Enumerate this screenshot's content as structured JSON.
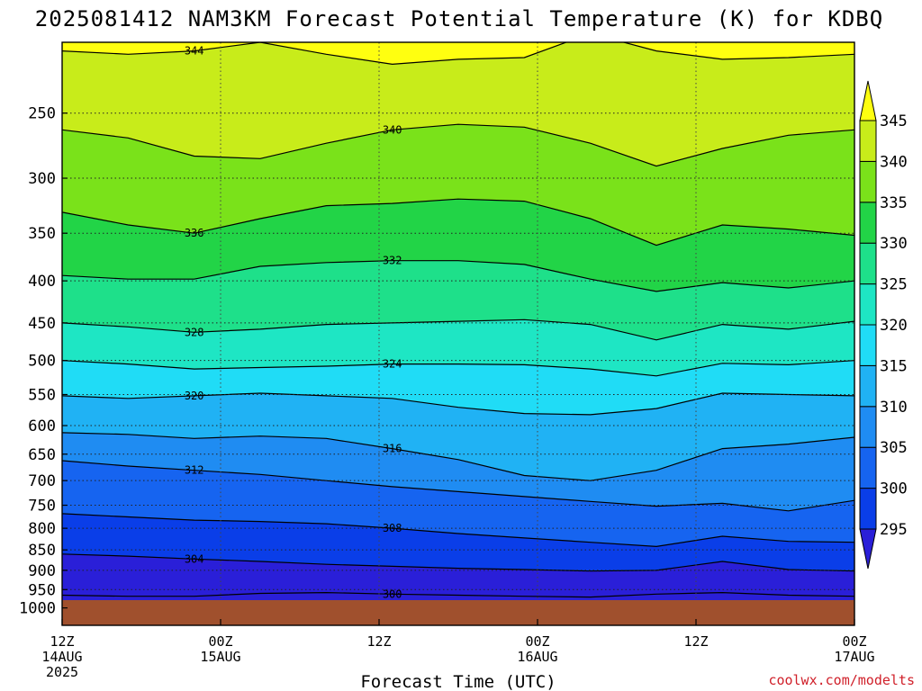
{
  "title": "2025081412 NAM3KM Forecast Potential Temperature (K) for KDBQ",
  "credit": "coolwx.com/modelts",
  "chart_data": {
    "type": "filled-contour",
    "title": "2025081412 NAM3KM Forecast Potential Temperature (K) for KDBQ",
    "xlabel": "Forecast Time (UTC)",
    "ylabel": "",
    "y_scale": "log-pressure (inverted)",
    "y_ticks": [
      250,
      300,
      350,
      400,
      450,
      500,
      550,
      600,
      650,
      700,
      750,
      800,
      850,
      900,
      950,
      1000
    ],
    "x_ticks": [
      {
        "hour": 0,
        "line1": "12Z",
        "line2": "14AUG",
        "line3": "2025"
      },
      {
        "hour": 12,
        "line1": "00Z",
        "line2": "15AUG",
        "line3": ""
      },
      {
        "hour": 24,
        "line1": "12Z",
        "line2": "",
        "line3": ""
      },
      {
        "hour": 36,
        "line1": "00Z",
        "line2": "16AUG",
        "line3": ""
      },
      {
        "hour": 48,
        "line1": "12Z",
        "line2": "",
        "line3": ""
      },
      {
        "hour": 60,
        "line1": "00Z",
        "line2": "17AUG",
        "line3": ""
      }
    ],
    "colorbar": {
      "levels": [
        295,
        300,
        305,
        310,
        315,
        320,
        325,
        330,
        335,
        340,
        345
      ],
      "colors": [
        "#2a1fd8",
        "#0a3ee8",
        "#1664f0",
        "#1f8cf2",
        "#20b2f4",
        "#20dcf6",
        "#1ee6c4",
        "#1ee08a",
        "#22d447",
        "#7ae21a",
        "#c8ec1a",
        "#ffff10"
      ]
    },
    "contour_lines": [
      {
        "level": 344,
        "p": [
          210,
          212,
          210,
          205,
          212,
          218,
          215,
          214,
          200,
          210,
          215,
          214,
          212
        ]
      },
      {
        "level": 340,
        "p": [
          262,
          268,
          282,
          284,
          272,
          262,
          258,
          260,
          272,
          290,
          276,
          266,
          262
        ]
      },
      {
        "level": 336,
        "p": [
          330,
          342,
          350,
          336,
          324,
          322,
          318,
          320,
          336,
          362,
          342,
          346,
          352
        ]
      },
      {
        "level": 332,
        "p": [
          394,
          398,
          398,
          384,
          380,
          378,
          378,
          382,
          398,
          412,
          402,
          408,
          400
        ]
      },
      {
        "level": 328,
        "p": [
          450,
          455,
          462,
          458,
          452,
          450,
          448,
          446,
          452,
          472,
          452,
          458,
          448
        ]
      },
      {
        "level": 324,
        "p": [
          500,
          505,
          512,
          510,
          508,
          505,
          505,
          506,
          512,
          522,
          504,
          506,
          500
        ]
      },
      {
        "level": 320,
        "p": [
          552,
          556,
          552,
          548,
          552,
          556,
          570,
          580,
          582,
          572,
          548,
          550,
          552
        ]
      },
      {
        "level": 316,
        "p": [
          612,
          615,
          622,
          618,
          622,
          640,
          660,
          690,
          700,
          680,
          640,
          632,
          620
        ]
      },
      {
        "level": 312,
        "p": [
          662,
          672,
          680,
          688,
          700,
          712,
          722,
          732,
          742,
          752,
          746,
          762,
          740
        ]
      },
      {
        "level": 308,
        "p": [
          768,
          775,
          782,
          785,
          790,
          800,
          812,
          822,
          832,
          842,
          818,
          830,
          832
        ]
      },
      {
        "level": 304,
        "p": [
          860,
          865,
          872,
          878,
          885,
          890,
          895,
          898,
          902,
          900,
          878,
          898,
          902
        ]
      },
      {
        "level": 300,
        "p": [
          965,
          968,
          968,
          960,
          958,
          962,
          965,
          968,
          970,
          962,
          958,
          965,
          968
        ]
      }
    ],
    "contour_labels": [
      "344",
      "340",
      "336",
      "332",
      "328",
      "324",
      "320",
      "316",
      "312",
      "308",
      "304",
      "300"
    ]
  }
}
